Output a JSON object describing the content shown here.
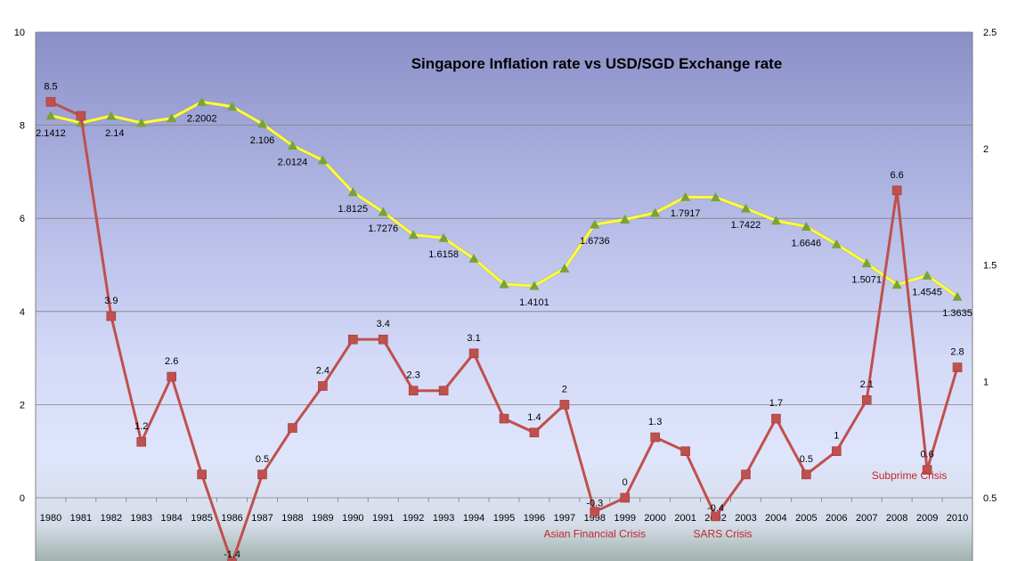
{
  "chart_data": {
    "type": "line",
    "title": "Singapore Inflation rate vs USD/SGD Exchange rate",
    "categories": [
      "1980",
      "1981",
      "1982",
      "1983",
      "1984",
      "1985",
      "1986",
      "1987",
      "1988",
      "1989",
      "1990",
      "1991",
      "1992",
      "1993",
      "1994",
      "1995",
      "1996",
      "1997",
      "1998",
      "1999",
      "2000",
      "2001",
      "2002",
      "2003",
      "2004",
      "2005",
      "2006",
      "2007",
      "2008",
      "2009",
      "2010"
    ],
    "y_left": {
      "min": 0,
      "max": 10,
      "ticks": [
        "0",
        "2",
        "4",
        "6",
        "8",
        "10"
      ]
    },
    "y_right": {
      "min": 0.5,
      "max": 2.5,
      "ticks": [
        "0.5",
        "1",
        "1.5",
        "2",
        "2.5"
      ]
    },
    "grid": true,
    "series": [
      {
        "id": "inflation",
        "axis": "left",
        "color": "#c0504d",
        "marker": "square",
        "values": [
          8.5,
          8.2,
          3.9,
          1.2,
          2.6,
          0.5,
          -1.4,
          0.5,
          1.5,
          2.4,
          3.4,
          3.4,
          2.3,
          2.3,
          3.1,
          1.7,
          1.4,
          2.0,
          -0.3,
          0.0,
          1.3,
          1.0,
          -0.4,
          0.5,
          1.7,
          0.5,
          1.0,
          2.1,
          6.6,
          0.6,
          2.8
        ],
        "labels": [
          "8.5",
          "",
          "3.9",
          "1.2",
          "2.6",
          "",
          "-1.4",
          "0.5",
          "",
          "2.4",
          "",
          "3.4",
          "2.3",
          "",
          "3.1",
          "",
          "1.4",
          "2",
          "-0.3",
          "0",
          "1.3",
          "",
          "-0.4",
          "",
          "1.7",
          "0.5",
          "1",
          "2.1",
          "6.6",
          "0.6",
          "2.8"
        ]
      },
      {
        "id": "exchange",
        "axis": "right",
        "color": "#ffff33",
        "marker": "triangle",
        "marker_color": "#7aa236",
        "values": [
          2.1412,
          2.11,
          2.14,
          2.11,
          2.13,
          2.2002,
          2.18,
          2.106,
          2.0124,
          1.95,
          1.8125,
          1.7276,
          1.6292,
          1.6158,
          1.5274,
          1.4174,
          1.4101,
          1.4848,
          1.6736,
          1.695,
          1.7239,
          1.7917,
          1.7907,
          1.7422,
          1.6902,
          1.6646,
          1.5889,
          1.5071,
          1.4149,
          1.4545,
          1.3635
        ],
        "labels": [
          "2.1412",
          "",
          "2.14",
          "",
          "",
          "2.2002",
          "",
          "2.106",
          "2.0124",
          "",
          "1.8125",
          "1.7276",
          "",
          "1.6158",
          "",
          "",
          "1.4101",
          "",
          "1.6736",
          "",
          "",
          "1.7917",
          "",
          "1.7422",
          "",
          "1.6646",
          "",
          "1.5071",
          "",
          "1.4545",
          "1.3635"
        ]
      }
    ],
    "annotations": [
      {
        "text": "Asian Financial  Crisis",
        "x_category": "1998",
        "y": -0.85
      },
      {
        "text": "SARS Crisis",
        "x_category": "2002",
        "y": -0.85
      },
      {
        "text": "Subprime Crisis",
        "x_category": "2009",
        "y": 0.4
      }
    ],
    "colors": {
      "plot_top": "#8a90c8",
      "plot_mid": "#c8d0f2",
      "plot_low": "#dfe5fb",
      "below_zero_bottom": "#9fb3ad",
      "grid": "#808080",
      "inflation": "#c0504d",
      "exchange": "#ffff33",
      "triangle": "#7aa236",
      "annotation": "#c0282c"
    }
  }
}
